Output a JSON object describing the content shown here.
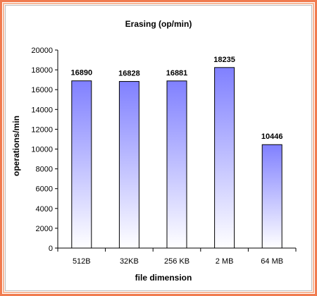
{
  "chart_data": {
    "type": "bar",
    "title": "Erasing (op/min)",
    "xlabel": "file dimension",
    "ylabel": "operations/min",
    "categories": [
      "512B",
      "32KB",
      "256 KB",
      "2 MB",
      "64 MB"
    ],
    "values": [
      16890,
      16828,
      16881,
      18235,
      10446
    ],
    "ylim": [
      0,
      20000
    ],
    "yticks": [
      "0",
      "2000",
      "4000",
      "6000",
      "8000",
      "10000",
      "12000",
      "14000",
      "16000",
      "18000",
      "20000"
    ],
    "grid": false,
    "legend": "none"
  },
  "colors": {
    "frame_outer": "#f07b4f",
    "frame_inner": "#f7b797",
    "bar_top": "#8080ff",
    "bar_bottom": "#ffffff",
    "bar_stroke": "#000000",
    "axis": "#000000"
  }
}
